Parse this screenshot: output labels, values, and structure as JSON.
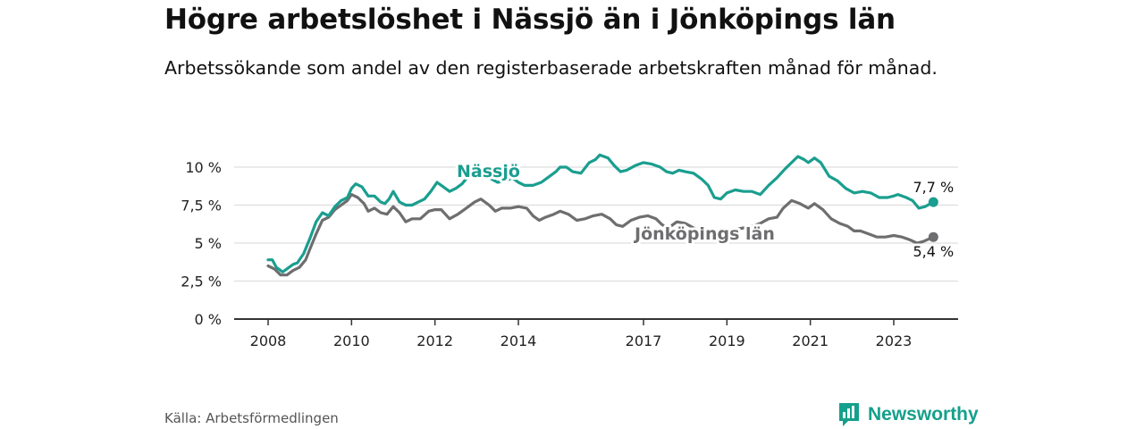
{
  "title": "Högre arbetslöshet i Nässjö än i Jönköpings län",
  "subtitle": "Arbetssökande som andel av den registerbaserade arbetskraften månad för månad.",
  "source": "Källa: Arbetsförmedlingen",
  "brand": "Newsworthy",
  "colors": {
    "nassjo": "#1a9e8f",
    "lan": "#6e6e70",
    "grid": "#dddddd",
    "axis": "#333333",
    "brand": "#15a08c"
  },
  "chart_data": {
    "type": "line",
    "title": "Högre arbetslöshet i Nässjö än i Jönköpings län",
    "xlabel": "",
    "ylabel": "",
    "ylim": [
      0,
      11
    ],
    "y_ticks": [
      {
        "value": 0,
        "label": "0 %"
      },
      {
        "value": 2.5,
        "label": "2,5 %"
      },
      {
        "value": 5,
        "label": "5 %"
      },
      {
        "value": 7.5,
        "label": "7,5 %"
      },
      {
        "value": 10,
        "label": "10 %"
      }
    ],
    "x_ticks": [
      {
        "value": 2008,
        "label": "2008"
      },
      {
        "value": 2010,
        "label": "2010"
      },
      {
        "value": 2012,
        "label": "2012"
      },
      {
        "value": 2014,
        "label": "2014"
      },
      {
        "value": 2017,
        "label": "2017"
      },
      {
        "value": 2019,
        "label": "2019"
      },
      {
        "value": 2021,
        "label": "2021"
      },
      {
        "value": 2023,
        "label": "2023"
      }
    ],
    "xlim": [
      2007.6,
      2024.6
    ],
    "series": [
      {
        "name": "Nässjö",
        "color": "#1a9e8f",
        "end_label": "7,7 %",
        "points": [
          [
            2008.0,
            3.9
          ],
          [
            2008.1,
            3.9
          ],
          [
            2008.2,
            3.4
          ],
          [
            2008.35,
            3.1
          ],
          [
            2008.5,
            3.4
          ],
          [
            2008.6,
            3.6
          ],
          [
            2008.7,
            3.7
          ],
          [
            2008.85,
            4.3
          ],
          [
            2009.0,
            5.3
          ],
          [
            2009.15,
            6.4
          ],
          [
            2009.3,
            7.0
          ],
          [
            2009.45,
            6.8
          ],
          [
            2009.6,
            7.4
          ],
          [
            2009.75,
            7.8
          ],
          [
            2009.9,
            8.0
          ],
          [
            2010.0,
            8.6
          ],
          [
            2010.1,
            8.9
          ],
          [
            2010.25,
            8.7
          ],
          [
            2010.4,
            8.1
          ],
          [
            2010.55,
            8.1
          ],
          [
            2010.7,
            7.7
          ],
          [
            2010.8,
            7.6
          ],
          [
            2010.9,
            7.9
          ],
          [
            2011.0,
            8.4
          ],
          [
            2011.15,
            7.7
          ],
          [
            2011.3,
            7.5
          ],
          [
            2011.45,
            7.5
          ],
          [
            2011.6,
            7.7
          ],
          [
            2011.75,
            7.9
          ],
          [
            2011.9,
            8.4
          ],
          [
            2012.05,
            9.0
          ],
          [
            2012.2,
            8.7
          ],
          [
            2012.35,
            8.4
          ],
          [
            2012.5,
            8.6
          ],
          [
            2012.65,
            8.9
          ],
          [
            2012.8,
            9.4
          ],
          [
            2012.95,
            9.7
          ],
          [
            2013.1,
            9.5
          ],
          [
            2013.3,
            9.3
          ],
          [
            2013.5,
            9.0
          ],
          [
            2013.7,
            9.1
          ],
          [
            2013.85,
            9.3
          ],
          [
            2014.0,
            9.0
          ],
          [
            2014.15,
            8.8
          ],
          [
            2014.35,
            8.8
          ],
          [
            2014.55,
            9.0
          ],
          [
            2014.75,
            9.4
          ],
          [
            2014.9,
            9.7
          ],
          [
            2015.0,
            10.0
          ],
          [
            2015.15,
            10.0
          ],
          [
            2015.3,
            9.7
          ],
          [
            2015.5,
            9.6
          ],
          [
            2015.7,
            10.3
          ],
          [
            2015.85,
            10.5
          ],
          [
            2015.95,
            10.8
          ],
          [
            2016.15,
            10.6
          ],
          [
            2016.3,
            10.1
          ],
          [
            2016.45,
            9.7
          ],
          [
            2016.6,
            9.8
          ],
          [
            2016.8,
            10.1
          ],
          [
            2017.0,
            10.3
          ],
          [
            2017.2,
            10.2
          ],
          [
            2017.4,
            10.0
          ],
          [
            2017.55,
            9.7
          ],
          [
            2017.7,
            9.6
          ],
          [
            2017.85,
            9.8
          ],
          [
            2018.0,
            9.7
          ],
          [
            2018.2,
            9.6
          ],
          [
            2018.4,
            9.2
          ],
          [
            2018.55,
            8.8
          ],
          [
            2018.7,
            8.0
          ],
          [
            2018.85,
            7.9
          ],
          [
            2019.0,
            8.3
          ],
          [
            2019.2,
            8.5
          ],
          [
            2019.4,
            8.4
          ],
          [
            2019.6,
            8.4
          ],
          [
            2019.8,
            8.2
          ],
          [
            2020.0,
            8.8
          ],
          [
            2020.2,
            9.3
          ],
          [
            2020.4,
            9.9
          ],
          [
            2020.55,
            10.3
          ],
          [
            2020.7,
            10.7
          ],
          [
            2020.85,
            10.5
          ],
          [
            2020.95,
            10.3
          ],
          [
            2021.1,
            10.6
          ],
          [
            2021.25,
            10.3
          ],
          [
            2021.45,
            9.4
          ],
          [
            2021.65,
            9.1
          ],
          [
            2021.85,
            8.6
          ],
          [
            2022.05,
            8.3
          ],
          [
            2022.25,
            8.4
          ],
          [
            2022.45,
            8.3
          ],
          [
            2022.65,
            8.0
          ],
          [
            2022.85,
            8.0
          ],
          [
            2023.0,
            8.1
          ],
          [
            2023.1,
            8.2
          ],
          [
            2023.3,
            8.0
          ],
          [
            2023.45,
            7.8
          ],
          [
            2023.6,
            7.3
          ],
          [
            2023.75,
            7.4
          ],
          [
            2023.95,
            7.7
          ]
        ]
      },
      {
        "name": "Jönköpings län",
        "color": "#6e6e70",
        "end_label": "5,4 %",
        "points": [
          [
            2008.0,
            3.5
          ],
          [
            2008.15,
            3.3
          ],
          [
            2008.3,
            2.9
          ],
          [
            2008.45,
            2.9
          ],
          [
            2008.6,
            3.2
          ],
          [
            2008.75,
            3.4
          ],
          [
            2008.9,
            3.9
          ],
          [
            2009.0,
            4.6
          ],
          [
            2009.15,
            5.6
          ],
          [
            2009.3,
            6.5
          ],
          [
            2009.45,
            6.7
          ],
          [
            2009.6,
            7.2
          ],
          [
            2009.75,
            7.5
          ],
          [
            2009.9,
            7.8
          ],
          [
            2010.0,
            8.2
          ],
          [
            2010.15,
            8.0
          ],
          [
            2010.3,
            7.6
          ],
          [
            2010.4,
            7.1
          ],
          [
            2010.55,
            7.3
          ],
          [
            2010.7,
            7.0
          ],
          [
            2010.85,
            6.9
          ],
          [
            2011.0,
            7.4
          ],
          [
            2011.15,
            7.0
          ],
          [
            2011.3,
            6.4
          ],
          [
            2011.45,
            6.6
          ],
          [
            2011.65,
            6.6
          ],
          [
            2011.85,
            7.1
          ],
          [
            2012.0,
            7.2
          ],
          [
            2012.15,
            7.2
          ],
          [
            2012.35,
            6.6
          ],
          [
            2012.55,
            6.9
          ],
          [
            2012.75,
            7.3
          ],
          [
            2012.95,
            7.7
          ],
          [
            2013.1,
            7.9
          ],
          [
            2013.3,
            7.5
          ],
          [
            2013.45,
            7.1
          ],
          [
            2013.6,
            7.3
          ],
          [
            2013.8,
            7.3
          ],
          [
            2014.0,
            7.4
          ],
          [
            2014.2,
            7.3
          ],
          [
            2014.35,
            6.8
          ],
          [
            2014.5,
            6.5
          ],
          [
            2014.65,
            6.7
          ],
          [
            2014.85,
            6.9
          ],
          [
            2015.0,
            7.1
          ],
          [
            2015.2,
            6.9
          ],
          [
            2015.4,
            6.5
          ],
          [
            2015.6,
            6.6
          ],
          [
            2015.8,
            6.8
          ],
          [
            2016.0,
            6.9
          ],
          [
            2016.2,
            6.6
          ],
          [
            2016.35,
            6.2
          ],
          [
            2016.5,
            6.1
          ],
          [
            2016.7,
            6.5
          ],
          [
            2016.9,
            6.7
          ],
          [
            2017.1,
            6.8
          ],
          [
            2017.3,
            6.6
          ],
          [
            2017.45,
            6.2
          ],
          [
            2017.6,
            6.0
          ],
          [
            2017.8,
            6.4
          ],
          [
            2018.0,
            6.3
          ],
          [
            2018.2,
            6.0
          ],
          [
            2018.4,
            5.8
          ],
          [
            2018.6,
            5.6
          ],
          [
            2018.8,
            5.6
          ],
          [
            2019.0,
            5.7
          ],
          [
            2019.2,
            5.9
          ],
          [
            2019.4,
            6.0
          ],
          [
            2019.6,
            6.1
          ],
          [
            2019.8,
            6.3
          ],
          [
            2020.0,
            6.6
          ],
          [
            2020.2,
            6.7
          ],
          [
            2020.35,
            7.3
          ],
          [
            2020.55,
            7.8
          ],
          [
            2020.75,
            7.6
          ],
          [
            2020.95,
            7.3
          ],
          [
            2021.1,
            7.6
          ],
          [
            2021.3,
            7.2
          ],
          [
            2021.5,
            6.6
          ],
          [
            2021.7,
            6.3
          ],
          [
            2021.9,
            6.1
          ],
          [
            2022.05,
            5.8
          ],
          [
            2022.2,
            5.8
          ],
          [
            2022.4,
            5.6
          ],
          [
            2022.6,
            5.4
          ],
          [
            2022.8,
            5.4
          ],
          [
            2023.0,
            5.5
          ],
          [
            2023.2,
            5.4
          ],
          [
            2023.4,
            5.2
          ],
          [
            2023.55,
            5.0
          ],
          [
            2023.7,
            5.1
          ],
          [
            2023.95,
            5.4
          ]
        ]
      }
    ]
  }
}
